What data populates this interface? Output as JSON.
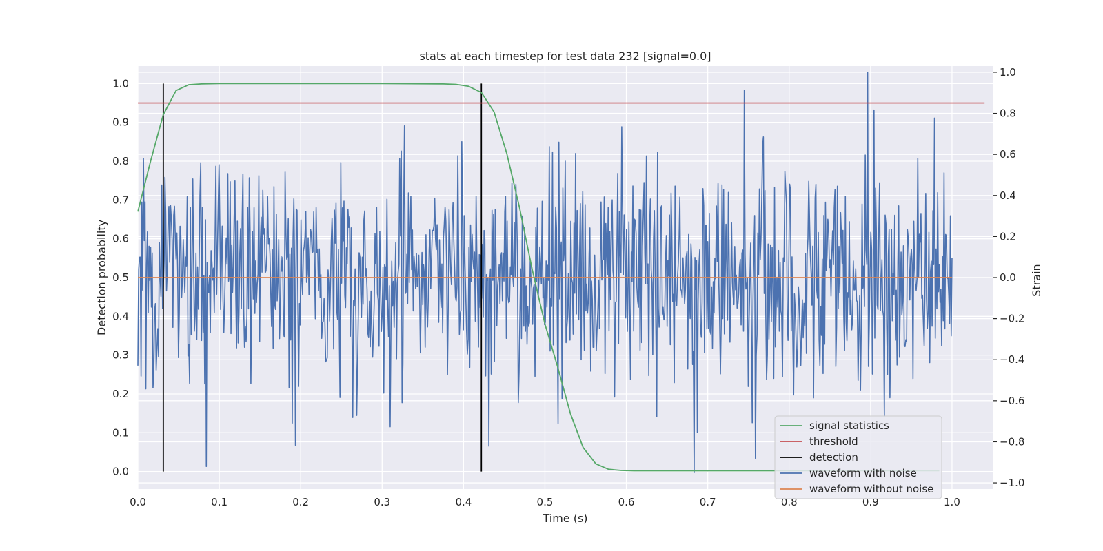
{
  "chart_data": {
    "type": "line",
    "title": "stats at each timestep for test data 232 [signal=0.0]",
    "xlabel": "Time (s)",
    "ylabel_left": "Detection probability",
    "ylabel_right": "Strain",
    "xlim": [
      0.0,
      1.05
    ],
    "ylim_left": [
      -0.045,
      1.045
    ],
    "ylim_right": [
      -1.03,
      1.03
    ],
    "xticks": [
      "0.0",
      "0.1",
      "0.2",
      "0.3",
      "0.4",
      "0.5",
      "0.6",
      "0.7",
      "0.8",
      "0.9",
      "1.0"
    ],
    "yticks_left": [
      "0.0",
      "0.1",
      "0.2",
      "0.3",
      "0.4",
      "0.5",
      "0.6",
      "0.7",
      "0.8",
      "0.9",
      "1.0"
    ],
    "yticks_right": [
      "−1.0",
      "−0.8",
      "−0.6",
      "−0.4",
      "−0.2",
      "0.0",
      "0.2",
      "0.4",
      "0.6",
      "0.8",
      "1.0"
    ],
    "grid": true,
    "legend_position": "lower-right",
    "colors": {
      "signal": "#55a868",
      "threshold": "#c44e52",
      "detection": "#000000",
      "noisy": "#4c72b0",
      "clean": "#dd8452",
      "background": "#eaeaf2",
      "grid": "#ffffff"
    },
    "series": [
      {
        "name": "signal statistics",
        "axis": "left",
        "x": [
          0.0,
          0.0156,
          0.0312,
          0.0469,
          0.0625,
          0.0781,
          0.1,
          0.2,
          0.3,
          0.375,
          0.3906,
          0.4062,
          0.4219,
          0.4375,
          0.4531,
          0.4688,
          0.4844,
          0.5,
          0.5156,
          0.5312,
          0.5469,
          0.5625,
          0.5781,
          0.5938,
          0.6094,
          0.65,
          0.7,
          0.8,
          0.9,
          0.9844
        ],
        "y": [
          0.67,
          0.8,
          0.92,
          0.982,
          0.997,
          0.999,
          1.0,
          1.0,
          1.0,
          0.999,
          0.998,
          0.993,
          0.977,
          0.927,
          0.82,
          0.68,
          0.52,
          0.38,
          0.27,
          0.15,
          0.062,
          0.02,
          0.006,
          0.003,
          0.002,
          0.002,
          0.002,
          0.002,
          0.002,
          0.002
        ]
      },
      {
        "name": "threshold",
        "axis": "left",
        "x": [
          0.0,
          1.04
        ],
        "y": [
          0.95,
          0.95
        ]
      },
      {
        "name": "detection",
        "axis": "left",
        "segments": [
          {
            "x": 0.0312,
            "y0": 0.0,
            "y1": 1.0
          },
          {
            "x": 0.4219,
            "y0": 0.0,
            "y1": 1.0
          }
        ]
      },
      {
        "name": "waveform with noise",
        "axis": "right",
        "x_start": 0.0,
        "x_end": 1.0,
        "n_points": 1024,
        "amplitude_range": [
          -0.95,
          1.0
        ]
      },
      {
        "name": "waveform without noise",
        "axis": "right",
        "x": [
          0.0,
          1.0
        ],
        "y": [
          0.0,
          0.0
        ]
      }
    ]
  }
}
